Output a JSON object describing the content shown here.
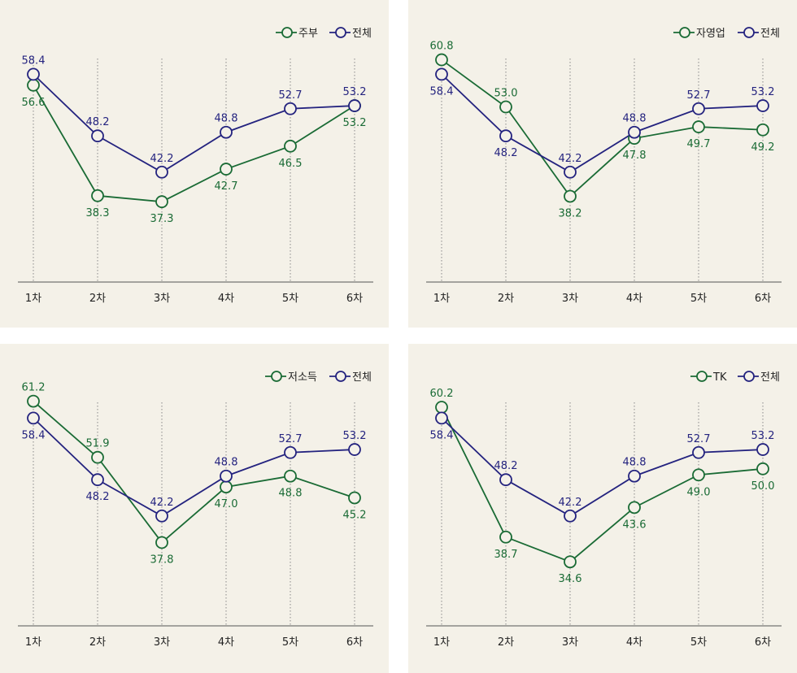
{
  "colors": {
    "group": "#1a6b35",
    "total": "#24237f",
    "background": "#f4f1e8",
    "axis": "#555555",
    "grid": "#888888"
  },
  "chart_data": [
    {
      "type": "line",
      "categories": [
        "1차",
        "2차",
        "3차",
        "4차",
        "5차",
        "6차"
      ],
      "ylim": [
        24,
        64
      ],
      "series": [
        {
          "name": "주부",
          "key": "group",
          "values": [
            56.6,
            38.3,
            37.3,
            42.7,
            46.5,
            53.2
          ],
          "labels": [
            "56.6",
            "38.3",
            "37.3",
            "42.7",
            "46.5",
            "53.2"
          ]
        },
        {
          "name": "전체",
          "key": "total",
          "values": [
            58.4,
            48.2,
            42.2,
            48.8,
            52.7,
            53.2
          ],
          "labels": [
            "58.4",
            "48.2",
            "42.2",
            "48.8",
            "52.7",
            "53.2"
          ]
        }
      ]
    },
    {
      "type": "line",
      "categories": [
        "1차",
        "2차",
        "3차",
        "4차",
        "5차",
        "6차"
      ],
      "ylim": [
        24,
        64
      ],
      "series": [
        {
          "name": "자영업",
          "key": "group",
          "values": [
            60.8,
            53.0,
            38.2,
            47.8,
            49.7,
            49.2
          ],
          "labels": [
            "60.8",
            "53.0",
            "38.2",
            "47.8",
            "49.7",
            "49.2"
          ]
        },
        {
          "name": "전체",
          "key": "total",
          "values": [
            58.4,
            48.2,
            42.2,
            48.8,
            52.7,
            53.2
          ],
          "labels": [
            "58.4",
            "48.2",
            "42.2",
            "48.8",
            "52.7",
            "53.2"
          ]
        }
      ]
    },
    {
      "type": "line",
      "categories": [
        "1차",
        "2차",
        "3차",
        "4차",
        "5차",
        "6차"
      ],
      "ylim": [
        24,
        64
      ],
      "series": [
        {
          "name": "저소득",
          "key": "group",
          "values": [
            61.2,
            51.9,
            37.8,
            47.0,
            48.8,
            45.2
          ],
          "labels": [
            "61.2",
            "51.9",
            "37.8",
            "47.0",
            "48.8",
            "45.2"
          ]
        },
        {
          "name": "전체",
          "key": "total",
          "values": [
            58.4,
            48.2,
            42.2,
            48.8,
            52.7,
            53.2
          ],
          "labels": [
            "58.4",
            "48.2",
            "42.2",
            "48.8",
            "52.7",
            "53.2"
          ]
        }
      ]
    },
    {
      "type": "line",
      "categories": [
        "1차",
        "2차",
        "3차",
        "4차",
        "5차",
        "6차"
      ],
      "ylim": [
        24,
        64
      ],
      "series": [
        {
          "name": "TK",
          "key": "group",
          "values": [
            60.2,
            38.7,
            34.6,
            43.6,
            49.0,
            50.0
          ],
          "labels": [
            "60.2",
            "38.7",
            "34.6",
            "43.6",
            "49.0",
            "50.0"
          ]
        },
        {
          "name": "전체",
          "key": "total",
          "values": [
            58.4,
            48.2,
            42.2,
            48.8,
            52.7,
            53.2
          ],
          "labels": [
            "58.4",
            "48.2",
            "42.2",
            "48.8",
            "52.7",
            "53.2"
          ]
        }
      ]
    }
  ]
}
